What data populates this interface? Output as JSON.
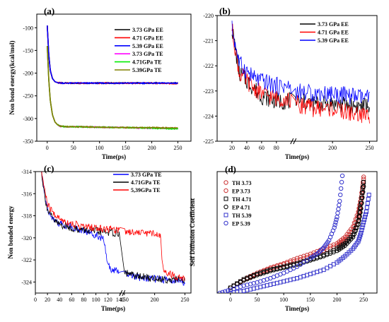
{
  "chart_data": [
    {
      "panel": "(a)",
      "type": "line",
      "xlabel": "Time(ps)",
      "ylabel": "Non bond energy(kcal/mol)",
      "xlim": [
        -20,
        275
      ],
      "ylim": [
        -350,
        -70
      ],
      "xticks": [
        "0",
        "50",
        "100",
        "150",
        "200",
        "250"
      ],
      "yticks": [
        "-100",
        "-150",
        "-200",
        "-250",
        "-300",
        "-350"
      ],
      "legend_position": "top-right",
      "series": [
        {
          "name": "3.73 GPa EE",
          "color": "#000000",
          "x": [
            0,
            3,
            6,
            10,
            15,
            20,
            30,
            50,
            100,
            150,
            200,
            250
          ],
          "y": [
            -95,
            -160,
            -195,
            -212,
            -219,
            -221,
            -222,
            -222,
            -222,
            -222,
            -222,
            -222
          ]
        },
        {
          "name": "4.71 GPa EE",
          "color": "#ff0000",
          "x": [
            0,
            3,
            6,
            10,
            15,
            20,
            30,
            50,
            100,
            150,
            200,
            250
          ],
          "y": [
            -95,
            -160,
            -195,
            -212,
            -219,
            -221,
            -222,
            -222,
            -222,
            -222,
            -222,
            -223
          ]
        },
        {
          "name": "5.39 GPa EE",
          "color": "#0000ff",
          "x": [
            0,
            3,
            6,
            10,
            15,
            20,
            30,
            50,
            100,
            150,
            200,
            250
          ],
          "y": [
            -95,
            -160,
            -195,
            -212,
            -219,
            -221,
            -222,
            -222,
            -222,
            -222,
            -222,
            -222
          ]
        },
        {
          "name": "3.73 GPa TE",
          "color": "#ff00ff",
          "x": [
            0,
            3,
            6,
            10,
            15,
            20,
            25,
            35,
            50,
            100,
            150,
            200,
            250
          ],
          "y": [
            -140,
            -215,
            -262,
            -292,
            -308,
            -314,
            -317,
            -318,
            -318,
            -319,
            -320,
            -321,
            -322
          ]
        },
        {
          "name": "4.71GPa TE",
          "color": "#00ee00",
          "x": [
            0,
            3,
            6,
            10,
            15,
            20,
            25,
            35,
            50,
            100,
            150,
            200,
            250
          ],
          "y": [
            -140,
            -215,
            -262,
            -292,
            -308,
            -314,
            -317,
            -318,
            -318,
            -319,
            -320,
            -321,
            -323
          ]
        },
        {
          "name": "5.39GPa TE",
          "color": "#808000",
          "x": [
            0,
            3,
            6,
            10,
            15,
            20,
            25,
            35,
            50,
            100,
            150,
            200,
            250
          ],
          "y": [
            -140,
            -215,
            -262,
            -292,
            -308,
            -314,
            -317,
            -318,
            -318,
            -319,
            -320,
            -320,
            -321
          ]
        }
      ]
    },
    {
      "panel": "(b)",
      "type": "line",
      "xlabel": "Time(ps)",
      "ylabel": "",
      "xlim": [
        0,
        260
      ],
      "ylim": [
        -225,
        -220
      ],
      "xbreak": [
        100,
        150
      ],
      "xticks": [
        "20",
        "40",
        "60",
        "80",
        "200",
        "250"
      ],
      "yticks": [
        "-220",
        "-221",
        "-222",
        "-223",
        "-224",
        "-225"
      ],
      "legend_position": "top-right",
      "series": [
        {
          "name": "3.73 GPa EE",
          "color": "#000000",
          "x": [
            20,
            30,
            40,
            50,
            60,
            70,
            80,
            90,
            100,
            150,
            175,
            200,
            225,
            250
          ],
          "y": [
            -220.5,
            -222.3,
            -222.6,
            -222.9,
            -223.2,
            -223.3,
            -223.4,
            -223.4,
            -223.4,
            -223.4,
            -223.5,
            -223.5,
            -223.6,
            -223.6
          ]
        },
        {
          "name": "4.71 GPa EE",
          "color": "#ff0000",
          "x": [
            20,
            30,
            40,
            50,
            60,
            70,
            80,
            90,
            100,
            150,
            175,
            200,
            225,
            250
          ],
          "y": [
            -220.5,
            -222.3,
            -222.6,
            -222.9,
            -223.1,
            -223.2,
            -223.3,
            -223.3,
            -223.4,
            -223.5,
            -223.7,
            -223.7,
            -223.9,
            -224.0
          ]
        },
        {
          "name": "5.39 GPa EE",
          "color": "#0000ff",
          "x": [
            20,
            30,
            40,
            50,
            60,
            70,
            80,
            90,
            100,
            150,
            175,
            200,
            225,
            250
          ],
          "y": [
            -220.5,
            -221.9,
            -222.2,
            -222.5,
            -222.6,
            -222.7,
            -222.8,
            -222.8,
            -222.9,
            -223.0,
            -223.1,
            -223.1,
            -223.2,
            -223.3
          ]
        }
      ]
    },
    {
      "panel": "(c)",
      "type": "line",
      "xlabel": "Time(ps)",
      "ylabel": "Non bonded energy",
      "xlim": [
        0,
        260
      ],
      "ylim": [
        -325,
        -314
      ],
      "xbreak": [
        140,
        150
      ],
      "xticks": [
        "0",
        "20",
        "40",
        "60",
        "80",
        "100",
        "120",
        "140",
        "150",
        "200",
        "250"
      ],
      "yticks": [
        "-314",
        "-316",
        "-318",
        "-320",
        "-322",
        "-324"
      ],
      "legend_position": "top-right",
      "series": [
        {
          "name": "3.73 GPa TE",
          "color": "#0000ff",
          "x": [
            10,
            15,
            20,
            30,
            40,
            60,
            80,
            100,
            110,
            115,
            118,
            125,
            140,
            150,
            175,
            200,
            210,
            225,
            240,
            250
          ],
          "y": [
            -314,
            -316,
            -317.3,
            -318.3,
            -318.7,
            -319.0,
            -319.4,
            -319.7,
            -320.0,
            -320.5,
            -322.3,
            -322.8,
            -323.1,
            -323.3,
            -323.6,
            -323.7,
            -323.8,
            -323.8,
            -323.9,
            -324.0
          ]
        },
        {
          "name": "4.71GPa TE",
          "color": "#000000",
          "x": [
            10,
            15,
            20,
            30,
            40,
            60,
            80,
            100,
            120,
            140,
            150,
            175,
            200,
            210,
            225,
            240,
            250
          ],
          "y": [
            -314,
            -316,
            -317.5,
            -318.4,
            -318.8,
            -319.1,
            -319.3,
            -319.4,
            -319.5,
            -319.6,
            -323.2,
            -323.5,
            -323.7,
            -323.7,
            -323.8,
            -323.8,
            -323.9
          ]
        },
        {
          "name": "5,39GPa TE",
          "color": "#ff0000",
          "x": [
            10,
            15,
            20,
            30,
            40,
            60,
            80,
            100,
            120,
            140,
            150,
            175,
            200,
            210,
            213,
            220,
            230,
            240,
            250
          ],
          "y": [
            -314,
            -315.5,
            -317,
            -317.8,
            -318.3,
            -318.7,
            -319.0,
            -319.1,
            -319.2,
            -319.3,
            -319.4,
            -319.5,
            -319.6,
            -319.8,
            -322.6,
            -323.1,
            -323.4,
            -323.6,
            -323.7
          ]
        }
      ]
    },
    {
      "panel": "(d)",
      "type": "scatter",
      "xlabel": "Time(ps)",
      "ylabel": "Self Diffusion Coefficient",
      "xlim": [
        -25,
        275
      ],
      "ylim": [
        -5,
        110
      ],
      "xticks": [
        "0",
        "50",
        "100",
        "150",
        "200",
        "250"
      ],
      "legend_position": "top-left",
      "series": [
        {
          "name": "TH 3.73",
          "color": "#cc3333",
          "marker": "circle",
          "x": [
            0,
            25,
            50,
            75,
            100,
            125,
            150,
            175,
            200,
            215,
            230,
            240,
            245,
            250
          ],
          "y": [
            0,
            8,
            14,
            19,
            23,
            28,
            32,
            37,
            42,
            48,
            58,
            72,
            85,
            105
          ]
        },
        {
          "name": "EP 3.73",
          "color": "#cc3333",
          "marker": "circle",
          "x": [
            0,
            25,
            50,
            75,
            100,
            125,
            150,
            175,
            200,
            215,
            230,
            240,
            245,
            250
          ],
          "y": [
            0,
            7,
            13,
            18,
            22,
            26,
            30,
            35,
            40,
            46,
            55,
            68,
            82,
            103
          ]
        },
        {
          "name": "TH 4.71",
          "color": "#000000",
          "marker": "square",
          "x": [
            0,
            25,
            50,
            75,
            100,
            125,
            150,
            175,
            200,
            215,
            230,
            240,
            245,
            250
          ],
          "y": [
            0,
            8,
            13,
            17,
            20,
            23,
            27,
            31,
            37,
            42,
            50,
            63,
            80,
            100
          ]
        },
        {
          "name": "EP 4.71",
          "color": "#000000",
          "marker": "circle",
          "x": [
            0,
            25,
            50,
            75,
            100,
            125,
            150,
            175,
            200,
            215,
            230,
            240,
            245,
            250
          ],
          "y": [
            0,
            7,
            12,
            16,
            19,
            22,
            26,
            30,
            35,
            40,
            48,
            60,
            75,
            96
          ]
        },
        {
          "name": "TH 5.39",
          "color": "#3333cc",
          "marker": "square",
          "x": [
            0,
            25,
            50,
            75,
            100,
            125,
            150,
            175,
            200,
            215,
            230,
            240,
            245,
            250,
            255,
            260
          ],
          "y": [
            -5,
            -3,
            0,
            3,
            6,
            9,
            13,
            17,
            24,
            30,
            37,
            44,
            52,
            62,
            72,
            88
          ]
        },
        {
          "name": "EP 5.39",
          "color": "#3333cc",
          "marker": "circle",
          "x": [
            -20,
            0,
            25,
            50,
            75,
            100,
            125,
            150,
            165,
            175,
            185,
            195,
            200,
            205,
            210
          ],
          "y": [
            -5,
            -2,
            2,
            5,
            9,
            14,
            20,
            28,
            33,
            38,
            45,
            57,
            67,
            82,
            106
          ]
        }
      ]
    }
  ]
}
